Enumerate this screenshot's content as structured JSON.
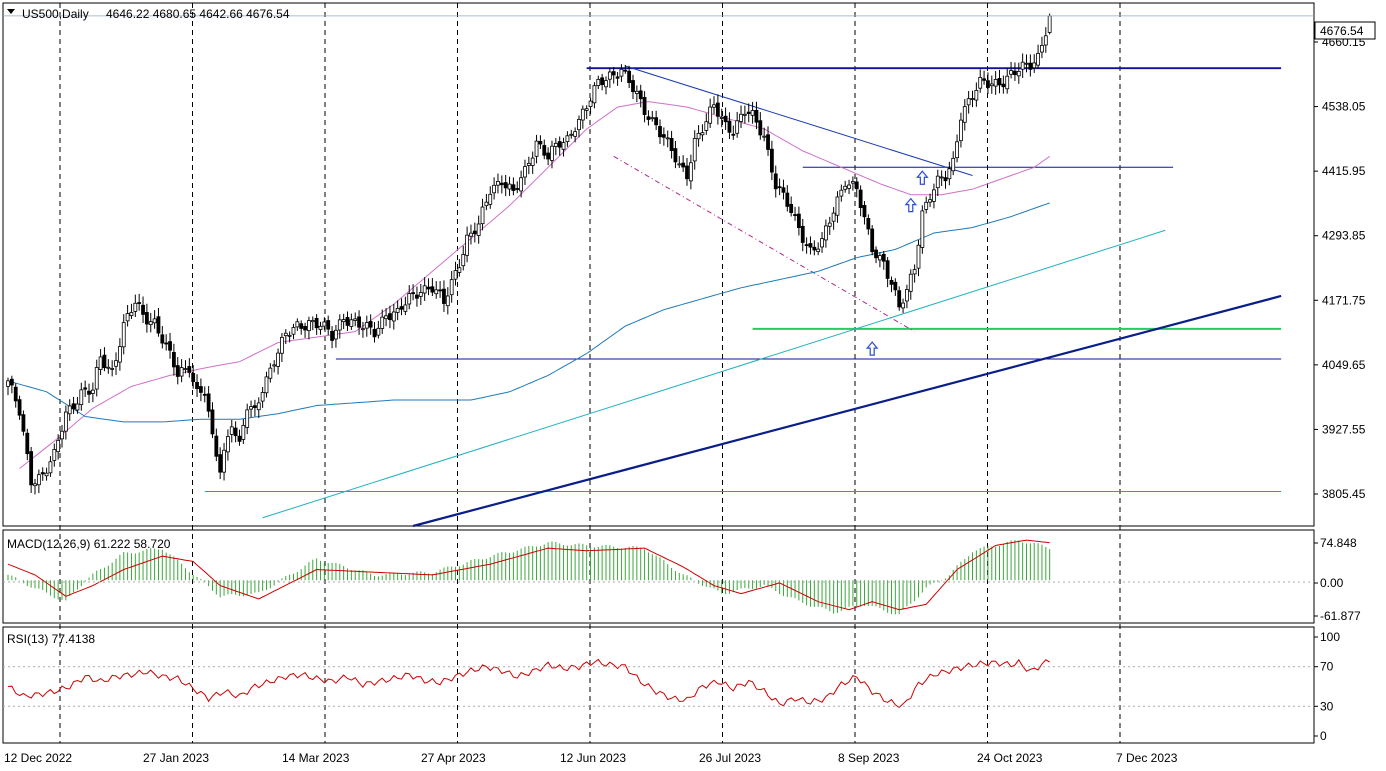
{
  "chart_data": {
    "type": "candlestick",
    "symbol_title": "US500,Daily",
    "ohlc_header": "4646.22 4680.65 4642.66 4676.54",
    "last_price_label": "4676.54",
    "price_axis_labels": [
      "4660.15",
      "4538.05",
      "4415.95",
      "4293.85",
      "4171.75",
      "4049.65",
      "3927.55",
      "3805.45"
    ],
    "date_axis_labels": [
      "12 Dec 2022",
      "27 Jan 2023",
      "14 Mar 2023",
      "27 Apr 2023",
      "12 Jun 2023",
      "26 Jul 2023",
      "8 Sep 2023",
      "24 Oct 2023",
      "7 Dec 2023"
    ],
    "price_ylim": [
      3745,
      4700
    ],
    "anchors": [
      [
        0,
        4010
      ],
      [
        3,
        3950
      ],
      [
        6,
        3830
      ],
      [
        9,
        3840
      ],
      [
        12,
        3870
      ],
      [
        15,
        3950
      ],
      [
        19,
        3990
      ],
      [
        22,
        3990
      ],
      [
        24,
        4050
      ],
      [
        27,
        4030
      ],
      [
        30,
        4110
      ],
      [
        33,
        4150
      ],
      [
        35,
        4130
      ],
      [
        38,
        4120
      ],
      [
        41,
        4070
      ],
      [
        44,
        4020
      ],
      [
        47,
        4040
      ],
      [
        49,
        3990
      ],
      [
        51,
        3990
      ],
      [
        53,
        3900
      ],
      [
        55,
        3850
      ],
      [
        58,
        3940
      ],
      [
        60,
        3890
      ],
      [
        62,
        3960
      ],
      [
        64,
        3950
      ],
      [
        66,
        4000
      ],
      [
        69,
        4050
      ],
      [
        72,
        4090
      ],
      [
        75,
        4110
      ],
      [
        78,
        4120
      ],
      [
        81,
        4110
      ],
      [
        84,
        4090
      ],
      [
        87,
        4130
      ],
      [
        90,
        4115
      ],
      [
        92,
        4105
      ],
      [
        95,
        4100
      ],
      [
        98,
        4135
      ],
      [
        101,
        4130
      ],
      [
        104,
        4160
      ],
      [
        107,
        4180
      ],
      [
        110,
        4180
      ],
      [
        113,
        4150
      ],
      [
        116,
        4210
      ],
      [
        119,
        4270
      ],
      [
        122,
        4290
      ],
      [
        125,
        4360
      ],
      [
        128,
        4380
      ],
      [
        131,
        4350
      ],
      [
        134,
        4390
      ],
      [
        137,
        4450
      ],
      [
        140,
        4420
      ],
      [
        143,
        4440
      ],
      [
        145,
        4450
      ],
      [
        147,
        4480
      ],
      [
        150,
        4510
      ],
      [
        153,
        4550
      ],
      [
        156,
        4570
      ],
      [
        159,
        4580
      ],
      [
        162,
        4540
      ],
      [
        165,
        4505
      ],
      [
        168,
        4480
      ],
      [
        171,
        4440
      ],
      [
        174,
        4400
      ],
      [
        176,
        4390
      ],
      [
        178,
        4450
      ],
      [
        181,
        4480
      ],
      [
        183,
        4510
      ],
      [
        186,
        4480
      ],
      [
        188,
        4470
      ],
      [
        191,
        4500
      ],
      [
        193,
        4490
      ],
      [
        196,
        4460
      ],
      [
        199,
        4370
      ],
      [
        202,
        4330
      ],
      [
        205,
        4290
      ],
      [
        208,
        4250
      ],
      [
        211,
        4260
      ],
      [
        214,
        4320
      ],
      [
        217,
        4380
      ],
      [
        220,
        4360
      ],
      [
        222,
        4300
      ],
      [
        224,
        4250
      ],
      [
        227,
        4230
      ],
      [
        229,
        4190
      ],
      [
        231,
        4140
      ],
      [
        233,
        4170
      ],
      [
        235,
        4220
      ],
      [
        237,
        4320
      ],
      [
        239,
        4350
      ],
      [
        241,
        4370
      ],
      [
        243,
        4380
      ],
      [
        245,
        4410
      ],
      [
        247,
        4500
      ],
      [
        249,
        4520
      ],
      [
        252,
        4550
      ],
      [
        255,
        4555
      ],
      [
        258,
        4560
      ],
      [
        261,
        4570
      ],
      [
        263,
        4580
      ],
      [
        265,
        4590
      ],
      [
        267,
        4605
      ],
      [
        269,
        4650
      ],
      [
        270,
        4676.54
      ]
    ],
    "macd": {
      "label": "MACD(12,26,9) 61.222 58.720",
      "axis_labels": [
        "74.848",
        "0.00",
        "-61.877"
      ],
      "ylim": [
        -78,
        92
      ],
      "histogram_anchors": [
        [
          0,
          10
        ],
        [
          7,
          -15
        ],
        [
          15,
          -40
        ],
        [
          20,
          0
        ],
        [
          30,
          50
        ],
        [
          40,
          60
        ],
        [
          55,
          -30
        ],
        [
          65,
          -25
        ],
        [
          80,
          40
        ],
        [
          95,
          10
        ],
        [
          110,
          15
        ],
        [
          125,
          45
        ],
        [
          140,
          70
        ],
        [
          150,
          65
        ],
        [
          165,
          60
        ],
        [
          175,
          10
        ],
        [
          185,
          -25
        ],
        [
          196,
          -10
        ],
        [
          205,
          -40
        ],
        [
          214,
          -60
        ],
        [
          222,
          -45
        ],
        [
          231,
          -65
        ],
        [
          238,
          -15
        ],
        [
          244,
          10
        ],
        [
          250,
          55
        ],
        [
          262,
          75
        ],
        [
          270,
          61
        ]
      ],
      "signal_anchors": [
        [
          0,
          30
        ],
        [
          7,
          10
        ],
        [
          15,
          -30
        ],
        [
          22,
          -10
        ],
        [
          30,
          20
        ],
        [
          40,
          45
        ],
        [
          48,
          35
        ],
        [
          55,
          -10
        ],
        [
          65,
          -35
        ],
        [
          80,
          20
        ],
        [
          95,
          15
        ],
        [
          110,
          10
        ],
        [
          125,
          30
        ],
        [
          140,
          60
        ],
        [
          150,
          55
        ],
        [
          165,
          60
        ],
        [
          175,
          25
        ],
        [
          183,
          -10
        ],
        [
          190,
          -25
        ],
        [
          200,
          -5
        ],
        [
          210,
          -40
        ],
        [
          218,
          -55
        ],
        [
          224,
          -40
        ],
        [
          231,
          -55
        ],
        [
          238,
          -45
        ],
        [
          246,
          20
        ],
        [
          256,
          65
        ],
        [
          264,
          75
        ],
        [
          270,
          70
        ]
      ]
    },
    "rsi": {
      "label": "RSI(13) 77.4138",
      "axis_labels": [
        "100",
        "70",
        "30",
        "0"
      ],
      "ylim": [
        0,
        100
      ],
      "levels": [
        70,
        30
      ],
      "anchors": [
        [
          0,
          50
        ],
        [
          4,
          40
        ],
        [
          8,
          42
        ],
        [
          12,
          45
        ],
        [
          16,
          50
        ],
        [
          20,
          60
        ],
        [
          24,
          55
        ],
        [
          28,
          60
        ],
        [
          32,
          62
        ],
        [
          36,
          65
        ],
        [
          40,
          60
        ],
        [
          44,
          58
        ],
        [
          48,
          48
        ],
        [
          52,
          38
        ],
        [
          56,
          45
        ],
        [
          60,
          40
        ],
        [
          64,
          50
        ],
        [
          68,
          55
        ],
        [
          72,
          60
        ],
        [
          76,
          62
        ],
        [
          80,
          58
        ],
        [
          84,
          55
        ],
        [
          88,
          60
        ],
        [
          92,
          52
        ],
        [
          96,
          55
        ],
        [
          100,
          58
        ],
        [
          104,
          62
        ],
        [
          108,
          56
        ],
        [
          112,
          54
        ],
        [
          116,
          60
        ],
        [
          120,
          66
        ],
        [
          124,
          70
        ],
        [
          128,
          66
        ],
        [
          132,
          60
        ],
        [
          136,
          65
        ],
        [
          140,
          72
        ],
        [
          144,
          68
        ],
        [
          148,
          70
        ],
        [
          152,
          75
        ],
        [
          156,
          72
        ],
        [
          160,
          70
        ],
        [
          164,
          55
        ],
        [
          168,
          45
        ],
        [
          172,
          38
        ],
        [
          176,
          36
        ],
        [
          180,
          50
        ],
        [
          184,
          55
        ],
        [
          188,
          48
        ],
        [
          192,
          55
        ],
        [
          196,
          45
        ],
        [
          200,
          32
        ],
        [
          204,
          38
        ],
        [
          208,
          34
        ],
        [
          212,
          38
        ],
        [
          216,
          52
        ],
        [
          220,
          60
        ],
        [
          224,
          45
        ],
        [
          228,
          35
        ],
        [
          232,
          30
        ],
        [
          236,
          52
        ],
        [
          240,
          62
        ],
        [
          244,
          66
        ],
        [
          248,
          70
        ],
        [
          252,
          73
        ],
        [
          256,
          74
        ],
        [
          260,
          72
        ],
        [
          262,
          74
        ],
        [
          265,
          65
        ],
        [
          268,
          72
        ],
        [
          270,
          77
        ]
      ]
    },
    "ma_pink_anchors": [
      [
        3,
        3850
      ],
      [
        12,
        3900
      ],
      [
        22,
        3960
      ],
      [
        32,
        4000
      ],
      [
        42,
        4020
      ],
      [
        52,
        4035
      ],
      [
        60,
        4045
      ],
      [
        70,
        4080
      ],
      [
        80,
        4090
      ],
      [
        90,
        4100
      ],
      [
        100,
        4150
      ],
      [
        110,
        4210
      ],
      [
        120,
        4270
      ],
      [
        130,
        4330
      ],
      [
        140,
        4400
      ],
      [
        150,
        4470
      ],
      [
        158,
        4510
      ],
      [
        166,
        4520
      ],
      [
        176,
        4510
      ],
      [
        186,
        4490
      ],
      [
        196,
        4470
      ],
      [
        206,
        4430
      ],
      [
        216,
        4400
      ],
      [
        226,
        4370
      ],
      [
        234,
        4350
      ],
      [
        242,
        4350
      ],
      [
        250,
        4360
      ],
      [
        258,
        4380
      ],
      [
        266,
        4400
      ],
      [
        270,
        4420
      ]
    ],
    "ma_blue_anchors": [
      [
        0,
        4010
      ],
      [
        10,
        3990
      ],
      [
        20,
        3945
      ],
      [
        30,
        3935
      ],
      [
        40,
        3935
      ],
      [
        50,
        3940
      ],
      [
        60,
        3940
      ],
      [
        70,
        3950
      ],
      [
        80,
        3965
      ],
      [
        90,
        3970
      ],
      [
        100,
        3975
      ],
      [
        110,
        3975
      ],
      [
        120,
        3975
      ],
      [
        130,
        3990
      ],
      [
        140,
        4020
      ],
      [
        150,
        4060
      ],
      [
        160,
        4110
      ],
      [
        170,
        4140
      ],
      [
        180,
        4160
      ],
      [
        190,
        4180
      ],
      [
        200,
        4195
      ],
      [
        210,
        4210
      ],
      [
        220,
        4235
      ],
      [
        230,
        4250
      ],
      [
        240,
        4280
      ],
      [
        250,
        4290
      ],
      [
        260,
        4310
      ],
      [
        270,
        4335
      ]
    ],
    "hlines": [
      {
        "y": 4581,
        "from": 150,
        "to": 330,
        "color": "#1010a0",
        "width": 1.8
      },
      {
        "y": 4400,
        "from": 206,
        "to": 302,
        "color": "#1010a0",
        "width": 1
      },
      {
        "y": 4105,
        "from": 193,
        "to": 330,
        "color": "#22cc66",
        "width": 2
      },
      {
        "y": 4050,
        "from": 85,
        "to": 330,
        "color": "#1010a0",
        "width": 1
      },
      {
        "y": 3808,
        "from": 51,
        "to": 330,
        "color": "#2aa198",
        "width": 1
      }
    ],
    "trendlines": [
      {
        "x1": 160,
        "y1": 4585,
        "x2": 250,
        "y2": 4385,
        "color": "#1a3bb0",
        "width": 1,
        "dash": ""
      },
      {
        "x1": 157,
        "y1": 4420,
        "x2": 235,
        "y2": 4100,
        "color": "#b02a8a",
        "width": 1,
        "dash": "5,3,1,3"
      },
      {
        "x1": 105,
        "y1": 3745,
        "x2": 330,
        "y2": 4165,
        "color": "#0a1e8a",
        "width": 2.2,
        "dash": ""
      },
      {
        "x1": 66,
        "y1": 3760,
        "x2": 300,
        "y2": 4285,
        "color": "#1fb0c0",
        "width": 1,
        "dash": ""
      }
    ],
    "up_arrows": [
      {
        "x": 224,
        "y": 4068
      },
      {
        "x": 234,
        "y": 4330
      },
      {
        "x": 237,
        "y": 4380
      }
    ]
  }
}
